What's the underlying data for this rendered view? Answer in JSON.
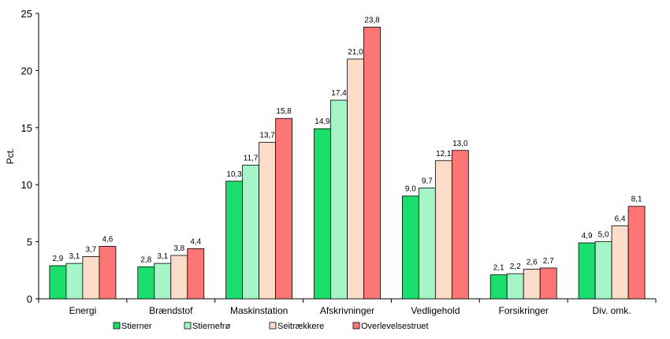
{
  "chart_data": {
    "type": "bar",
    "ylabel": "Pct.",
    "xlabel": "",
    "ylim": [
      0,
      25
    ],
    "yticks": [
      0,
      5,
      10,
      15,
      20,
      25
    ],
    "grid": false,
    "legend_position": "bottom",
    "categories": [
      "Energi",
      "Brændstof",
      "Maskinstation",
      "Afskrivninger",
      "Vedligehold",
      "Forsikringer",
      "Div. omk."
    ],
    "series": [
      {
        "name": "Stierner",
        "color": "#1adf6d",
        "values": [
          2.9,
          2.8,
          10.3,
          14.9,
          9.0,
          2.1,
          4.9
        ],
        "labels": [
          "2,9",
          "2,8",
          "10,3",
          "14,9",
          "9,0",
          "2,1",
          "4,9"
        ]
      },
      {
        "name": "Stiernefrø",
        "color": "#a5f5c8",
        "values": [
          3.1,
          3.1,
          11.7,
          17.4,
          9.7,
          2.2,
          5.0
        ],
        "labels": [
          "3,1",
          "3,1",
          "11,7",
          "17,4",
          "9,7",
          "2,2",
          "5,0"
        ]
      },
      {
        "name": "Seitrækkere",
        "color": "#fadcc8",
        "values": [
          3.7,
          3.8,
          13.7,
          21.0,
          12.1,
          2.6,
          6.4
        ],
        "labels": [
          "3,7",
          "3,8",
          "13,7",
          "21,0",
          "12,1",
          "2,6",
          "6,4"
        ]
      },
      {
        "name": "Overlevelsestruet",
        "color": "#fd7676",
        "values": [
          4.6,
          4.4,
          15.8,
          23.8,
          13.0,
          2.7,
          8.1
        ],
        "labels": [
          "4,6",
          "4,4",
          "15,8",
          "23,8",
          "13,0",
          "2,7",
          "8,1"
        ]
      }
    ]
  }
}
